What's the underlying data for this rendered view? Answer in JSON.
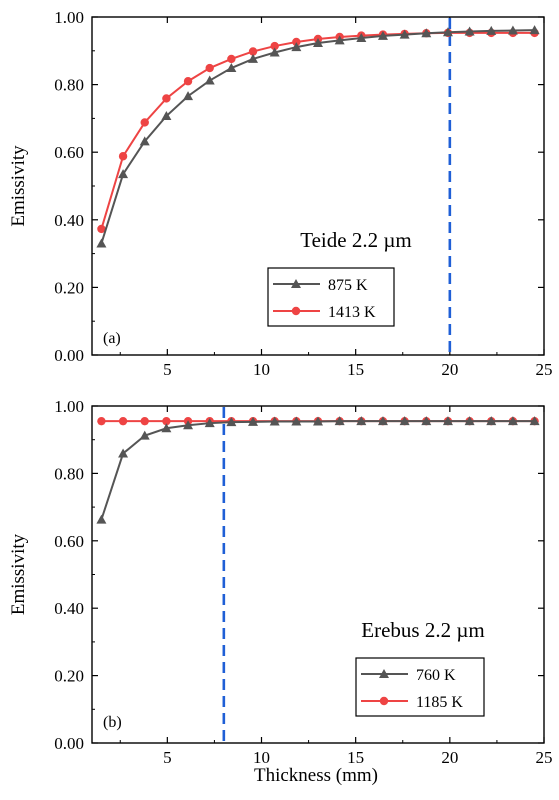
{
  "chart_data": [
    {
      "type": "line",
      "panel_label": "(a)",
      "annotation": "Teide 2.2 µm",
      "xlabel": "",
      "ylabel": "Emissivity",
      "xlim": [
        1,
        25
      ],
      "ylim": [
        0,
        1
      ],
      "xticks": [
        "5",
        "10",
        "15",
        "20",
        "25"
      ],
      "yticks": [
        "0.00",
        "0.20",
        "0.40",
        "0.60",
        "0.80",
        "1.00"
      ],
      "vline_x": 20,
      "legend_position": "center",
      "series": [
        {
          "name": "875 K",
          "marker": "triangle",
          "color": "#555555",
          "x": [
            1.5,
            2.65,
            3.8,
            4.95,
            6.1,
            7.25,
            8.4,
            9.55,
            10.7,
            11.85,
            13.0,
            14.15,
            15.3,
            16.45,
            17.6,
            18.75,
            19.9,
            21.05,
            22.2,
            23.35,
            24.5
          ],
          "y": [
            0.33,
            0.535,
            0.632,
            0.707,
            0.766,
            0.812,
            0.849,
            0.876,
            0.895,
            0.911,
            0.923,
            0.931,
            0.938,
            0.944,
            0.948,
            0.952,
            0.955,
            0.957,
            0.959,
            0.96,
            0.961
          ]
        },
        {
          "name": "1413 K",
          "marker": "circle",
          "color": "#ee4444",
          "x": [
            1.5,
            2.65,
            3.8,
            4.95,
            6.1,
            7.25,
            8.4,
            9.55,
            10.7,
            11.85,
            13.0,
            14.15,
            15.3,
            16.45,
            17.6,
            18.75,
            19.9,
            21.05,
            22.2,
            23.35,
            24.5
          ],
          "y": [
            0.373,
            0.588,
            0.688,
            0.759,
            0.81,
            0.849,
            0.876,
            0.898,
            0.914,
            0.926,
            0.935,
            0.941,
            0.945,
            0.948,
            0.95,
            0.952,
            0.953,
            0.953,
            0.953,
            0.953,
            0.953
          ]
        }
      ]
    },
    {
      "type": "line",
      "panel_label": "(b)",
      "annotation": "Erebus 2.2 µm",
      "xlabel": "Thickness (mm)",
      "ylabel": "Emissivity",
      "xlim": [
        1,
        25
      ],
      "ylim": [
        0,
        1
      ],
      "xticks": [
        "5",
        "10",
        "15",
        "20",
        "25"
      ],
      "yticks": [
        "0.00",
        "0.20",
        "0.40",
        "0.60",
        "0.80",
        "1.00"
      ],
      "vline_x": 8,
      "legend_position": "bottom-right",
      "series": [
        {
          "name": "760 K",
          "marker": "triangle",
          "color": "#555555",
          "x": [
            1.5,
            2.65,
            3.8,
            4.95,
            6.1,
            7.25,
            8.4,
            9.55,
            10.7,
            11.85,
            13.0,
            14.15,
            15.3,
            16.45,
            17.6,
            18.75,
            19.9,
            21.05,
            22.2,
            23.35,
            24.5
          ],
          "y": [
            0.663,
            0.859,
            0.912,
            0.934,
            0.943,
            0.949,
            0.952,
            0.953,
            0.954,
            0.954,
            0.954,
            0.955,
            0.955,
            0.955,
            0.955,
            0.955,
            0.955,
            0.955,
            0.955,
            0.955,
            0.955
          ]
        },
        {
          "name": "1185 K",
          "marker": "circle",
          "color": "#ee4444",
          "x": [
            1.5,
            2.65,
            3.8,
            4.95,
            6.1,
            7.25,
            8.4,
            9.55,
            10.7,
            11.85,
            13.0,
            14.15,
            15.3,
            16.45,
            17.6,
            18.75,
            19.9,
            21.05,
            22.2,
            23.35,
            24.5
          ],
          "y": [
            0.955,
            0.955,
            0.955,
            0.955,
            0.955,
            0.955,
            0.955,
            0.955,
            0.955,
            0.955,
            0.955,
            0.955,
            0.955,
            0.955,
            0.955,
            0.955,
            0.955,
            0.955,
            0.955,
            0.955,
            0.955
          ]
        }
      ]
    }
  ]
}
